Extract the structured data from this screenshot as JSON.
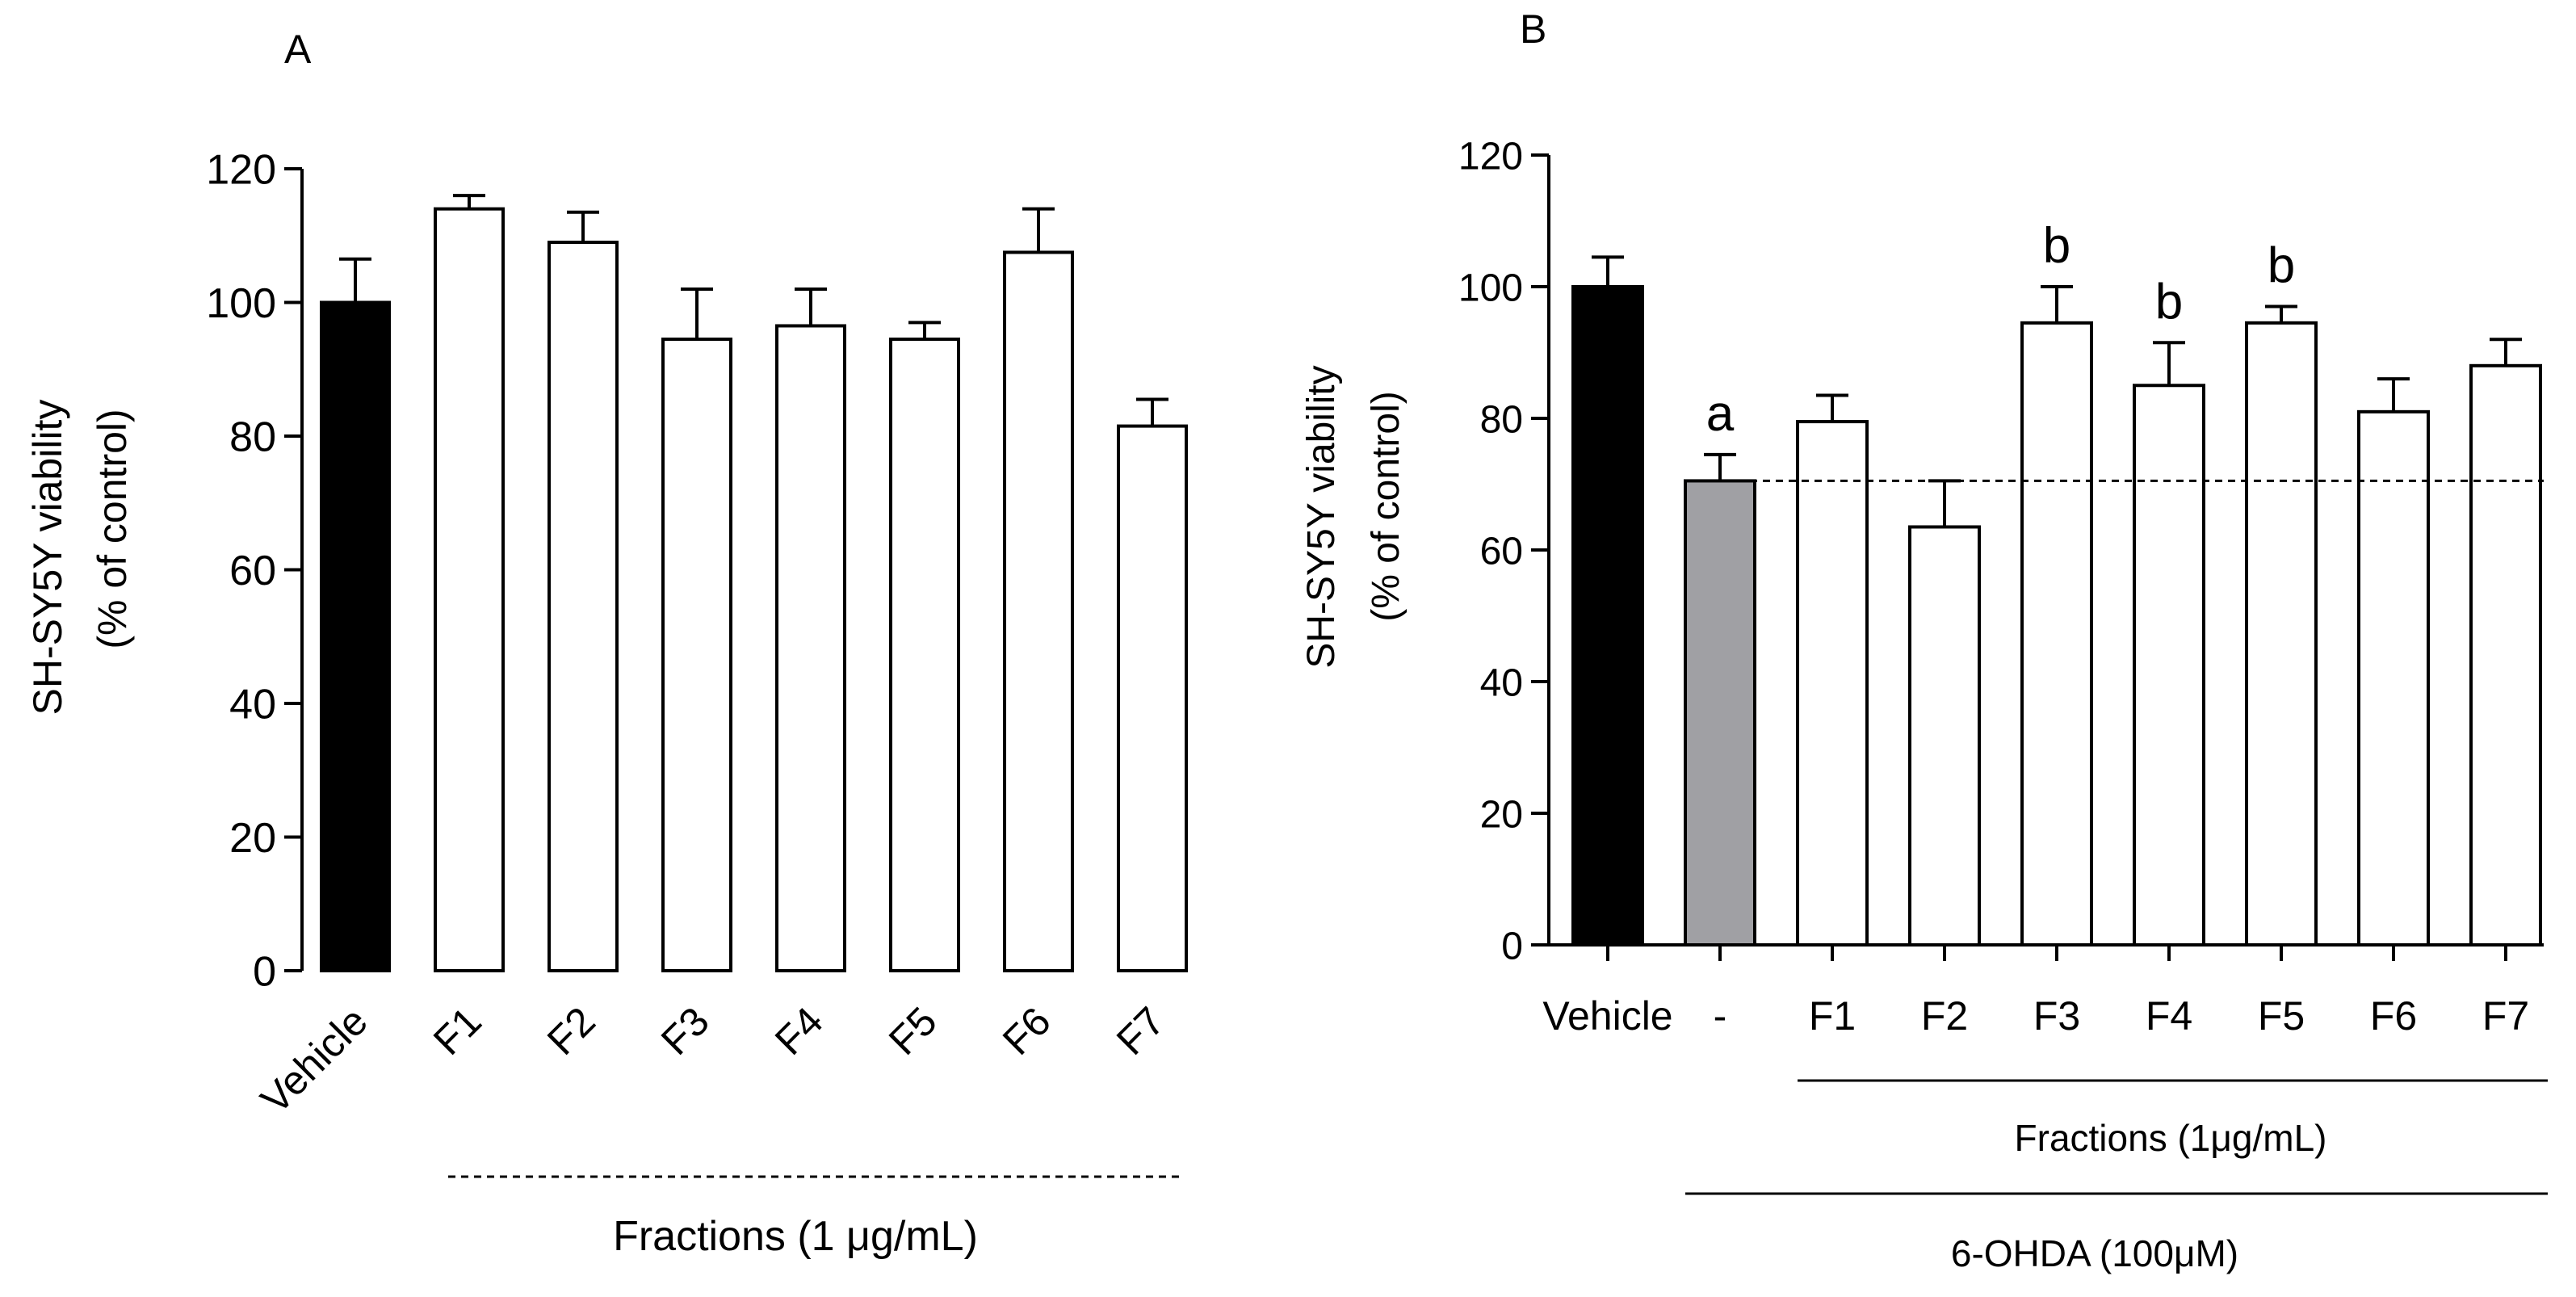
{
  "chart_data": [
    {
      "panel_label": "A",
      "type": "bar",
      "categories": [
        "Vehicle",
        "F1",
        "F2",
        "F3",
        "F4",
        "F5",
        "F6",
        "F7"
      ],
      "values": [
        100,
        114,
        109,
        94.5,
        96.5,
        94.5,
        107.5,
        81.5
      ],
      "errors": [
        6.5,
        2,
        4.5,
        7.5,
        5.5,
        2.5,
        6.5,
        4
      ],
      "bar_colors": [
        "#000000",
        "#ffffff",
        "#ffffff",
        "#ffffff",
        "#ffffff",
        "#ffffff",
        "#ffffff",
        "#ffffff"
      ],
      "ylabel_line1": "SH-SY5Y  viability",
      "ylabel_line2": "(% of control)",
      "ylim": [
        0,
        120
      ],
      "yticks": [
        "0",
        "20",
        "40",
        "60",
        "80",
        "100",
        "120"
      ],
      "group_label": "Fractions (1 μg/mL)",
      "annotations": [
        "",
        "",
        "",
        "",
        "",
        "",
        "",
        ""
      ]
    },
    {
      "panel_label": "B",
      "type": "bar",
      "categories": [
        "Vehicle",
        "-",
        "F1",
        "F2",
        "F3",
        "F4",
        "F5",
        "F6",
        "F7"
      ],
      "values": [
        100,
        70.5,
        79.5,
        63.5,
        94.5,
        85,
        94.5,
        81,
        88
      ],
      "errors": [
        4.5,
        4,
        4,
        7,
        5.5,
        6.5,
        2.5,
        5,
        4
      ],
      "bar_colors": [
        "#000000",
        "#a0a0a4",
        "#ffffff",
        "#ffffff",
        "#ffffff",
        "#ffffff",
        "#ffffff",
        "#ffffff",
        "#ffffff"
      ],
      "ylabel_line1": "SH-SY5Y  viability",
      "ylabel_line2": "(% of control)",
      "ylim": [
        0,
        120
      ],
      "yticks": [
        "0",
        "20",
        "40",
        "60",
        "80",
        "100",
        "120"
      ],
      "reference_line": 70.5,
      "annotations": [
        "",
        "a",
        "",
        "",
        "b",
        "b",
        "b",
        "",
        ""
      ],
      "group_label_1": "Fractions (1μg/mL)",
      "group_label_2": "6-OHDA (100μM)"
    }
  ]
}
